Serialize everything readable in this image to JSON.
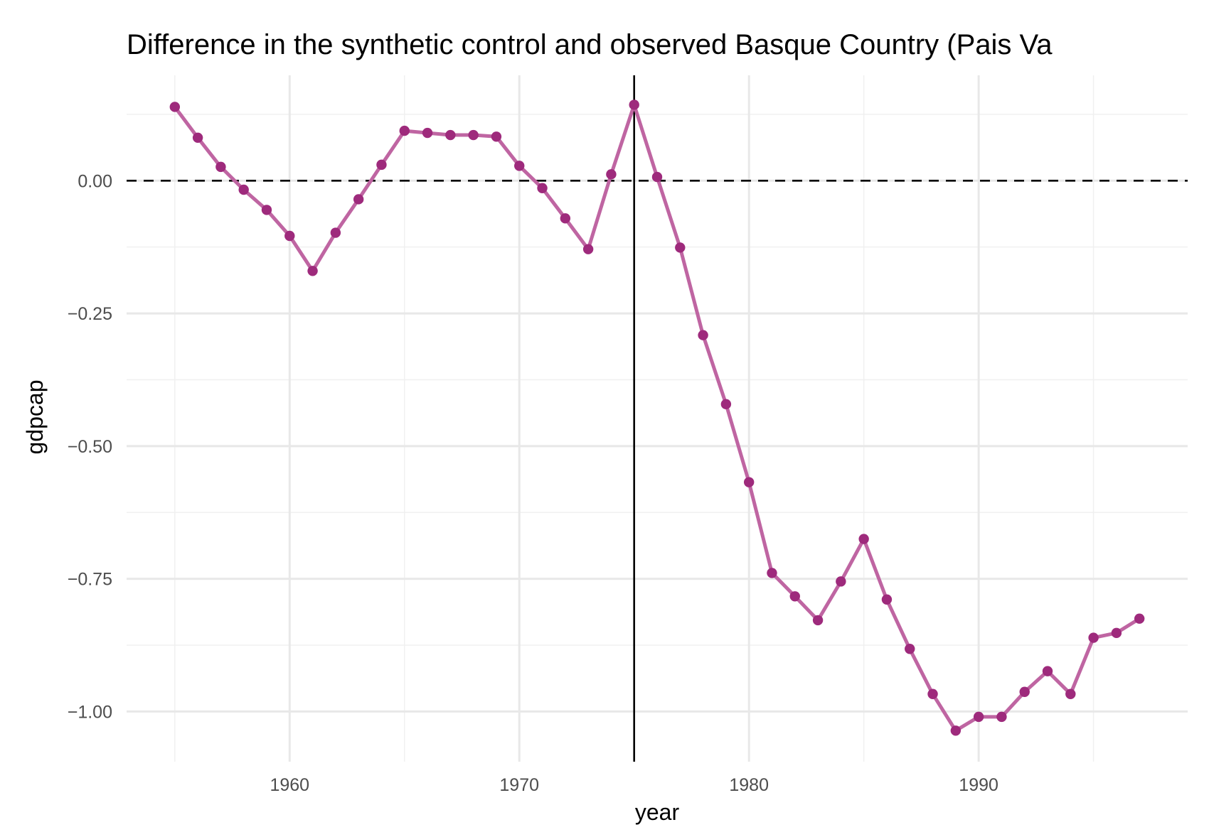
{
  "chart_data": {
    "type": "line",
    "title": "Difference in the synthetic control and observed Basque Country (Pais Va",
    "xlabel": "year",
    "ylabel": "gdpcap",
    "xlim": [
      1952.9,
      1999.1
    ],
    "ylim": [
      -1.0945,
      0.1985
    ],
    "x_ticks": [
      1960,
      1970,
      1980,
      1990
    ],
    "x_tick_labels": [
      "1960",
      "1970",
      "1980",
      "1990"
    ],
    "y_ticks": [
      0.0,
      -0.25,
      -0.5,
      -0.75,
      -1.0
    ],
    "y_tick_labels": [
      "0.00",
      "−0.25",
      "−0.50",
      "−0.75",
      "−1.00"
    ],
    "grid": true,
    "reference_lines": [
      {
        "orientation": "horizontal",
        "value": 0,
        "style": "dashed"
      },
      {
        "orientation": "vertical",
        "value": 1975,
        "style": "solid"
      }
    ],
    "series": [
      {
        "color": "#9e2a7c",
        "line_color": "#bf65a2",
        "x": [
          1955,
          1956,
          1957,
          1958,
          1959,
          1960,
          1961,
          1962,
          1963,
          1964,
          1965,
          1966,
          1967,
          1968,
          1969,
          1970,
          1971,
          1972,
          1973,
          1974,
          1975,
          1976,
          1977,
          1978,
          1979,
          1980,
          1981,
          1982,
          1983,
          1984,
          1985,
          1986,
          1987,
          1988,
          1989,
          1990,
          1991,
          1992,
          1993,
          1994,
          1995,
          1996,
          1997
        ],
        "y": [
          0.139,
          0.081,
          0.026,
          -0.017,
          -0.055,
          -0.104,
          -0.17,
          -0.098,
          -0.035,
          0.03,
          0.094,
          0.09,
          0.086,
          0.086,
          0.083,
          0.028,
          -0.014,
          -0.071,
          -0.129,
          0.012,
          0.143,
          0.007,
          -0.126,
          -0.291,
          -0.421,
          -0.568,
          -0.739,
          -0.783,
          -0.828,
          -0.755,
          -0.675,
          -0.789,
          -0.882,
          -0.967,
          -1.036,
          -1.01,
          -1.01,
          -0.963,
          -0.924,
          -0.967,
          -0.861,
          -0.852,
          -0.825
        ]
      }
    ]
  }
}
